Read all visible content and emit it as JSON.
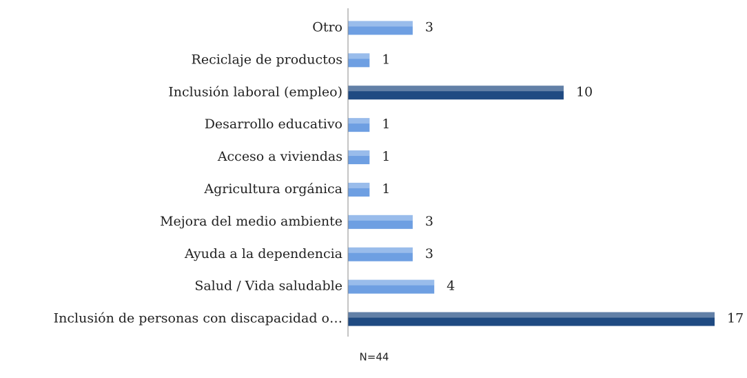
{
  "chart_data": {
    "type": "bar",
    "orientation": "horizontal",
    "categories": [
      "Otro",
      "Reciclaje de productos",
      "Inclusión laboral (empleo)",
      "Desarrollo educativo",
      "Acceso a viviendas",
      "Agricultura orgánica",
      "Mejora del medio ambiente",
      "Ayuda a la dependencia",
      "Salud / Vida saludable",
      "Inclusión de personas con discapacidad o…"
    ],
    "values": [
      3,
      1,
      10,
      1,
      1,
      1,
      3,
      3,
      4,
      17
    ],
    "colors": [
      "#6e9fe2",
      "#6e9fe2",
      "#1f4a82",
      "#6e9fe2",
      "#6e9fe2",
      "#6e9fe2",
      "#6e9fe2",
      "#6e9fe2",
      "#6e9fe2",
      "#1f4a82"
    ],
    "xlim": [
      0,
      17
    ],
    "annotation": "N=44"
  }
}
